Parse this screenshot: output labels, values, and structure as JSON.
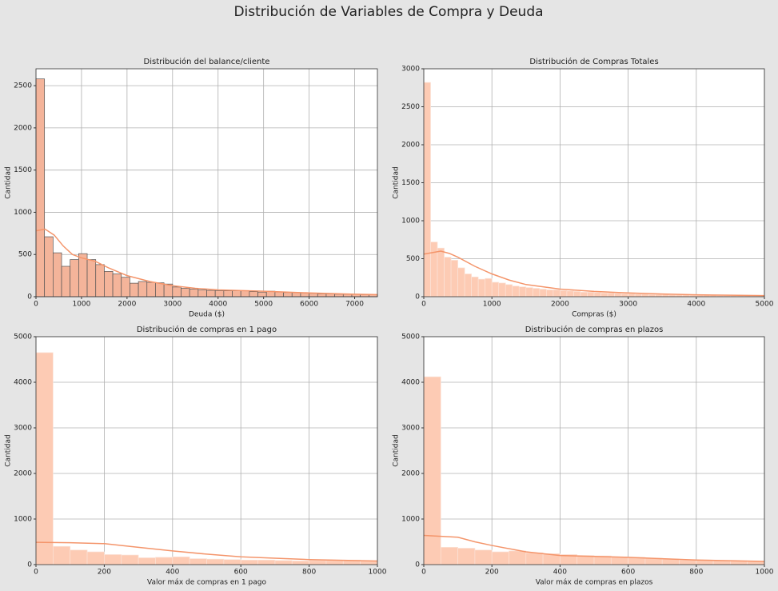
{
  "title": "Distribución de Variables de Compra y Deuda",
  "chart_data": [
    {
      "type": "histogram",
      "title": "Distribución del balance/cliente",
      "xlabel": "Deuda ($)",
      "ylabel": "Cantidad",
      "bins": [
        0,
        187.5,
        375,
        562.5,
        750,
        937.5,
        1125,
        1312.5,
        1500,
        1687.5,
        1875,
        2062.5,
        2250,
        2437.5,
        2625,
        2812.5,
        3000,
        3187.5,
        3375,
        3562.5,
        3750,
        3937.5,
        4125,
        4312.5,
        4500,
        4687.5,
        4875,
        5062.5,
        5250,
        5437.5,
        5625,
        5812.5,
        6000,
        6187.5,
        6375,
        6562.5,
        6750,
        6937.5,
        7125,
        7312.5,
        7500
      ],
      "values": [
        2580,
        710,
        520,
        360,
        440,
        510,
        440,
        380,
        300,
        270,
        230,
        160,
        180,
        170,
        165,
        150,
        115,
        100,
        90,
        80,
        75,
        70,
        70,
        70,
        70,
        60,
        55,
        65,
        55,
        50,
        50,
        45,
        40,
        35,
        35,
        30,
        30,
        30,
        25,
        25
      ],
      "kde": {
        "x": [
          0,
          200,
          400,
          600,
          800,
          1000,
          1300,
          1600,
          2000,
          2500,
          3000,
          3500,
          4000,
          5000,
          6000,
          7000,
          7500
        ],
        "y": [
          780,
          800,
          730,
          600,
          500,
          460,
          420,
          340,
          250,
          180,
          130,
          100,
          80,
          65,
          45,
          30,
          25
        ]
      },
      "color": "#f4b49a",
      "edgecolor": "#555555",
      "line_color": "#f4956b",
      "xlim": [
        0,
        7500
      ],
      "ylim": [
        0,
        2700
      ],
      "xticks": [
        0,
        1000,
        2000,
        3000,
        4000,
        5000,
        6000,
        7000
      ],
      "yticks": [
        0,
        500,
        1000,
        1500,
        2000,
        2500
      ],
      "grid": true
    },
    {
      "type": "histogram",
      "title": "Distribución de Compras Totales",
      "xlabel": "Compras ($)",
      "ylabel": "Cantidad",
      "bins": [
        0,
        100,
        200,
        300,
        400,
        500,
        600,
        700,
        800,
        900,
        1000,
        1100,
        1200,
        1300,
        1400,
        1500,
        1600,
        1700,
        1800,
        1900,
        2000,
        2100,
        2200,
        2300,
        2400,
        2500,
        2600,
        2700,
        2800,
        2900,
        3000,
        3100,
        3200,
        3300,
        3400,
        3500,
        3600,
        3700,
        3800,
        3900,
        4000,
        4100,
        4200,
        4300,
        4400,
        4500,
        4600,
        4700,
        4800,
        4900,
        5000
      ],
      "values": [
        2820,
        720,
        640,
        520,
        480,
        380,
        300,
        260,
        230,
        240,
        190,
        180,
        160,
        140,
        130,
        120,
        110,
        100,
        90,
        90,
        80,
        75,
        70,
        60,
        60,
        55,
        50,
        50,
        45,
        40,
        40,
        35,
        35,
        30,
        30,
        30,
        25,
        25,
        25,
        20,
        20,
        20,
        20,
        15,
        15,
        15,
        15,
        15,
        10,
        10
      ],
      "kde": {
        "x": [
          0,
          125,
          250,
          375,
          500,
          750,
          1000,
          1250,
          1500,
          2000,
          2500,
          3000,
          3500,
          4000,
          4500,
          5000
        ],
        "y": [
          560,
          580,
          600,
          570,
          520,
          400,
          300,
          220,
          160,
          100,
          70,
          50,
          35,
          25,
          20,
          15
        ]
      },
      "color": "#fdcbb4",
      "edgecolor": "#fbe3d8",
      "line_color": "#f4956b",
      "xlim": [
        0,
        5000
      ],
      "ylim": [
        0,
        3000
      ],
      "xticks": [
        0,
        1000,
        2000,
        3000,
        4000,
        5000
      ],
      "yticks": [
        0,
        500,
        1000,
        1500,
        2000,
        2500,
        3000
      ],
      "grid": true
    },
    {
      "type": "histogram",
      "title": "Distribución de compras en 1 pago",
      "xlabel": "Valor máx de compras en 1 pago",
      "ylabel": "Cantidad",
      "bins": [
        0,
        50,
        100,
        150,
        200,
        250,
        300,
        350,
        400,
        450,
        500,
        550,
        600,
        650,
        700,
        750,
        800,
        850,
        900,
        950,
        1000
      ],
      "values": [
        4650,
        400,
        320,
        280,
        220,
        210,
        150,
        160,
        170,
        130,
        120,
        110,
        100,
        100,
        90,
        80,
        90,
        90,
        100,
        80
      ],
      "kde": {
        "x": [
          0,
          100,
          200,
          300,
          400,
          500,
          600,
          700,
          800,
          900,
          1000
        ],
        "y": [
          490,
          480,
          460,
          380,
          300,
          230,
          170,
          140,
          110,
          95,
          80
        ]
      },
      "color": "#fdcbb4",
      "edgecolor": "#fbe3d8",
      "line_color": "#f4956b",
      "xlim": [
        0,
        1000
      ],
      "ylim": [
        0,
        5000
      ],
      "xticks": [
        0,
        200,
        400,
        600,
        800,
        1000
      ],
      "yticks": [
        0,
        1000,
        2000,
        3000,
        4000,
        5000
      ],
      "grid": true
    },
    {
      "type": "histogram",
      "title": "Distribución de compras en plazos",
      "xlabel": "Valor máx de compras en plazos",
      "ylabel": "Cantidad",
      "bins": [
        0,
        50,
        100,
        150,
        200,
        250,
        300,
        350,
        400,
        450,
        500,
        550,
        600,
        650,
        700,
        750,
        800,
        850,
        900,
        950,
        1000
      ],
      "values": [
        4120,
        380,
        360,
        320,
        280,
        300,
        260,
        240,
        220,
        200,
        190,
        170,
        160,
        140,
        120,
        100,
        100,
        90,
        80,
        70
      ],
      "kde": {
        "x": [
          0,
          100,
          150,
          200,
          300,
          400,
          500,
          600,
          700,
          800,
          900,
          1000
        ],
        "y": [
          640,
          600,
          500,
          420,
          280,
          200,
          180,
          160,
          130,
          100,
          85,
          70
        ]
      },
      "color": "#fdcbb4",
      "edgecolor": "#fbe3d8",
      "line_color": "#f4956b",
      "xlim": [
        0,
        1000
      ],
      "ylim": [
        0,
        5000
      ],
      "xticks": [
        0,
        200,
        400,
        600,
        800,
        1000
      ],
      "yticks": [
        0,
        1000,
        2000,
        3000,
        4000,
        5000
      ],
      "grid": true
    }
  ]
}
